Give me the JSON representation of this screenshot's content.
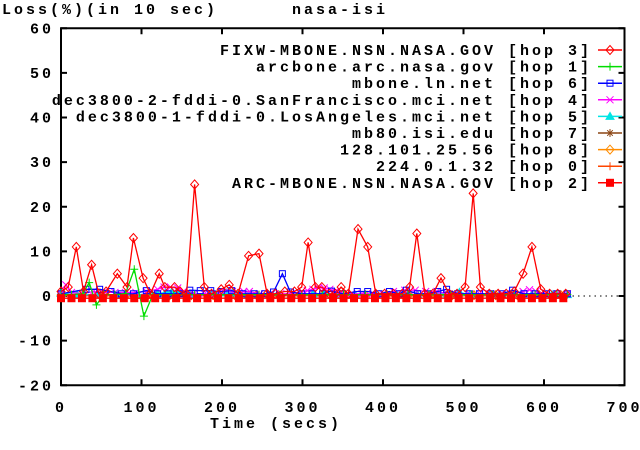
{
  "header": {
    "title_left": "Loss(%)(in 10 sec)",
    "title_center": "nasa-isi"
  },
  "chart_data": {
    "type": "line",
    "title": "nasa-isi",
    "caption_top_left": "Loss(%)(in 10 sec)",
    "xlabel": "Time (secs)",
    "ylabel": "",
    "xlim": [
      0,
      700
    ],
    "ylim": [
      -20,
      60
    ],
    "xticks": [
      0,
      100,
      200,
      300,
      400,
      500,
      600,
      700
    ],
    "yticks": [
      -20,
      -10,
      0,
      10,
      20,
      30,
      40,
      50,
      60
    ],
    "grid": "dotted black zero line at y=0, ticks inward on all four frame sides",
    "legend_position": "top-right",
    "frame_color": "#000000",
    "series": [
      {
        "label": "FIXW-MBONE.NSN.NASA.GOV [hop 3]",
        "color": "#ff0000",
        "marker": "diamond",
        "points": [
          [
            0,
            1
          ],
          [
            9,
            2
          ],
          [
            19,
            11
          ],
          [
            28,
            1
          ],
          [
            38,
            7
          ],
          [
            47,
            0.5
          ],
          [
            56,
            1
          ],
          [
            70,
            5
          ],
          [
            82,
            2
          ],
          [
            90,
            13
          ],
          [
            102,
            4
          ],
          [
            111,
            0.5
          ],
          [
            122,
            5
          ],
          [
            129,
            2
          ],
          [
            141,
            2
          ],
          [
            148,
            1
          ],
          [
            156,
            0.5
          ],
          [
            166,
            25
          ],
          [
            178,
            2
          ],
          [
            187,
            0.5
          ],
          [
            199,
            1.5
          ],
          [
            209,
            2.5
          ],
          [
            220,
            0.5
          ],
          [
            233,
            9
          ],
          [
            246,
            9.5
          ],
          [
            256,
            0.5
          ],
          [
            266,
            0.5
          ],
          [
            278,
            1
          ],
          [
            290,
            1
          ],
          [
            299,
            2
          ],
          [
            307,
            12
          ],
          [
            316,
            2
          ],
          [
            324,
            2
          ],
          [
            333,
            0.5
          ],
          [
            341,
            0.5
          ],
          [
            348,
            2
          ],
          [
            357,
            0.5
          ],
          [
            369,
            15
          ],
          [
            381,
            11
          ],
          [
            391,
            0.5
          ],
          [
            402,
            0.5
          ],
          [
            413,
            0.5
          ],
          [
            424,
            0.5
          ],
          [
            433,
            2
          ],
          [
            442,
            14
          ],
          [
            452,
            0.5
          ],
          [
            462,
            0.5
          ],
          [
            472,
            4
          ],
          [
            482,
            0.5
          ],
          [
            492,
            0.5
          ],
          [
            502,
            2
          ],
          [
            512,
            23
          ],
          [
            521,
            2
          ],
          [
            532,
            0.5
          ],
          [
            543,
            0.5
          ],
          [
            553,
            0.5
          ],
          [
            563,
            1
          ],
          [
            574,
            5
          ],
          [
            585,
            11
          ],
          [
            596,
            1.5
          ],
          [
            607,
            0.5
          ],
          [
            617,
            0.5
          ],
          [
            627,
            0.5
          ]
        ]
      },
      {
        "label": "arcbone.arc.nasa.gov [hop 1]",
        "color": "#00dd00",
        "marker": "plus",
        "points": [
          [
            0,
            0.3
          ],
          [
            13,
            0.3
          ],
          [
            27,
            0.5
          ],
          [
            35,
            3
          ],
          [
            44,
            -2
          ],
          [
            53,
            0.3
          ],
          [
            67,
            0.3
          ],
          [
            80,
            0.5
          ],
          [
            91,
            6
          ],
          [
            103,
            -4.5
          ],
          [
            114,
            0.3
          ],
          [
            140,
            0.3
          ],
          [
            166,
            0.3
          ],
          [
            193,
            0.3
          ],
          [
            220,
            0.3
          ],
          [
            246,
            0.3
          ],
          [
            272,
            0.3
          ],
          [
            299,
            0.3
          ],
          [
            325,
            0.3
          ],
          [
            351,
            0.3
          ],
          [
            378,
            0.3
          ],
          [
            404,
            0.3
          ],
          [
            431,
            0.3
          ],
          [
            457,
            0.3
          ],
          [
            484,
            0.3
          ],
          [
            510,
            0.3
          ],
          [
            536,
            0.3
          ],
          [
            563,
            0.3
          ],
          [
            589,
            0.3
          ],
          [
            616,
            0.3
          ],
          [
            629,
            0.3
          ]
        ]
      },
      {
        "label": "mbone.ln.net [hop 6]",
        "color": "#0000ff",
        "marker": "square",
        "points": [
          [
            0,
            0.5
          ],
          [
            31,
            1.5
          ],
          [
            48,
            1.5
          ],
          [
            62,
            1
          ],
          [
            75,
            0.5
          ],
          [
            90,
            0.5
          ],
          [
            106,
            1.2
          ],
          [
            120,
            0.5
          ],
          [
            133,
            0.5
          ],
          [
            147,
            0.5
          ],
          [
            160,
            1.3
          ],
          [
            173,
            1.2
          ],
          [
            186,
            1.2
          ],
          [
            199,
            1
          ],
          [
            212,
            1.2
          ],
          [
            226,
            0.5
          ],
          [
            240,
            0.5
          ],
          [
            253,
            0.5
          ],
          [
            264,
            0.9
          ],
          [
            275,
            5
          ],
          [
            285,
            0.9
          ],
          [
            299,
            0.5
          ],
          [
            312,
            0.5
          ],
          [
            325,
            0.5
          ],
          [
            336,
            1.1
          ],
          [
            350,
            0.5
          ],
          [
            368,
            1
          ],
          [
            381,
            1
          ],
          [
            395,
            0.5
          ],
          [
            408,
            1
          ],
          [
            420,
            0.5
          ],
          [
            429,
            1.3
          ],
          [
            443,
            0.5
          ],
          [
            456,
            0.5
          ],
          [
            468,
            1
          ],
          [
            479,
            1.5
          ],
          [
            493,
            0.5
          ],
          [
            507,
            0.5
          ],
          [
            520,
            0.5
          ],
          [
            534,
            0.5
          ],
          [
            548,
            0.5
          ],
          [
            561,
            1.3
          ],
          [
            575,
            0.5
          ],
          [
            589,
            0.5
          ],
          [
            603,
            0.5
          ],
          [
            616,
            0.5
          ],
          [
            629,
            0.5
          ]
        ]
      },
      {
        "label": "dec3800-2-fddi-0.SanFrancisco.mci.net [hop 4]",
        "color": "#ff00ff",
        "marker": "x",
        "points": [
          [
            0,
            0.5
          ],
          [
            6,
            2.5
          ],
          [
            13,
            0.8
          ],
          [
            27,
            0.5
          ],
          [
            40,
            1
          ],
          [
            53,
            0.8
          ],
          [
            67,
            0.8
          ],
          [
            80,
            0.8
          ],
          [
            93,
            0.8
          ],
          [
            106,
            1
          ],
          [
            120,
            1.5
          ],
          [
            128,
            2
          ],
          [
            136,
            2
          ],
          [
            145,
            1.8
          ],
          [
            152,
            1
          ],
          [
            165,
            0.5
          ],
          [
            178,
            0.5
          ],
          [
            191,
            0.5
          ],
          [
            199,
            1
          ],
          [
            206,
            1.2
          ],
          [
            213,
            1
          ],
          [
            220,
            0.6
          ],
          [
            227,
            1
          ],
          [
            234,
            1
          ],
          [
            247,
            0.5
          ],
          [
            260,
            0.5
          ],
          [
            273,
            0.5
          ],
          [
            286,
            0.5
          ],
          [
            299,
            1
          ],
          [
            306,
            1.2
          ],
          [
            313,
            1.5
          ],
          [
            320,
            1.8
          ],
          [
            327,
            1.8
          ],
          [
            334,
            1.5
          ],
          [
            341,
            1
          ],
          [
            348,
            0.6
          ],
          [
            361,
            0.5
          ],
          [
            374,
            0.5
          ],
          [
            387,
            0.5
          ],
          [
            400,
            0.5
          ],
          [
            413,
            1
          ],
          [
            427,
            1.3
          ],
          [
            440,
            1.3
          ],
          [
            453,
            1
          ],
          [
            467,
            1
          ],
          [
            480,
            0.5
          ],
          [
            493,
            0.5
          ],
          [
            507,
            0.5
          ],
          [
            520,
            0.5
          ],
          [
            533,
            0.5
          ],
          [
            547,
            0.5
          ],
          [
            560,
            0.5
          ],
          [
            574,
            1
          ],
          [
            582,
            1.4
          ],
          [
            590,
            1
          ],
          [
            602,
            0.5
          ],
          [
            616,
            0.5
          ],
          [
            629,
            0.5
          ]
        ]
      },
      {
        "label": "dec3800-1-fddi-0.LosAngeles.mci.net [hop 5]",
        "color": "#00e5e5",
        "marker": "triangle",
        "points": [
          [
            0,
            0.6
          ],
          [
            20,
            0.3
          ],
          [
            45,
            0.3
          ],
          [
            70,
            0.3
          ],
          [
            95,
            0.3
          ],
          [
            120,
            0.5
          ],
          [
            130,
            0.8
          ],
          [
            138,
            1
          ],
          [
            146,
            0.8
          ],
          [
            160,
            0.3
          ],
          [
            186,
            0.3
          ],
          [
            206,
            0.7
          ],
          [
            213,
            0.7
          ],
          [
            233,
            0.3
          ],
          [
            260,
            0.3
          ],
          [
            286,
            0.3
          ],
          [
            313,
            0.5
          ],
          [
            326,
            0.5
          ],
          [
            340,
            0.3
          ],
          [
            365,
            0.3
          ],
          [
            391,
            0.3
          ],
          [
            417,
            0.3
          ],
          [
            443,
            0.3
          ],
          [
            468,
            0.4
          ],
          [
            480,
            0.5
          ],
          [
            495,
            0.8
          ],
          [
            508,
            0.3
          ],
          [
            533,
            0.3
          ],
          [
            559,
            0.3
          ],
          [
            585,
            0.3
          ],
          [
            610,
            0.3
          ],
          [
            629,
            0.3
          ]
        ]
      },
      {
        "label": "mb80.isi.edu [hop 7]",
        "color": "#8b4513",
        "marker": "star",
        "uniform": {
          "t_start": 0,
          "t_end": 629,
          "t_step": 27,
          "v": 0.1
        }
      },
      {
        "label": "128.101.25.56 [hop 8]",
        "color": "#ff8c00",
        "marker": "diamond",
        "uniform": {
          "t_start": 0,
          "t_end": 629,
          "t_step": 27,
          "v": 0.2
        }
      },
      {
        "label": "224.0.1.32 [hop 0]",
        "color": "#ff4500",
        "marker": "plus",
        "uniform": {
          "t_start": 0,
          "t_end": 629,
          "t_step": 27,
          "v": 0.05
        }
      },
      {
        "label": "ARC-MBONE.NSN.NASA.GOV [hop 2]",
        "color": "#ff0000",
        "marker": "square-filled",
        "uniform": {
          "t_start": 0,
          "t_end": 624,
          "t_step": 13,
          "v": -0.5
        }
      }
    ]
  }
}
